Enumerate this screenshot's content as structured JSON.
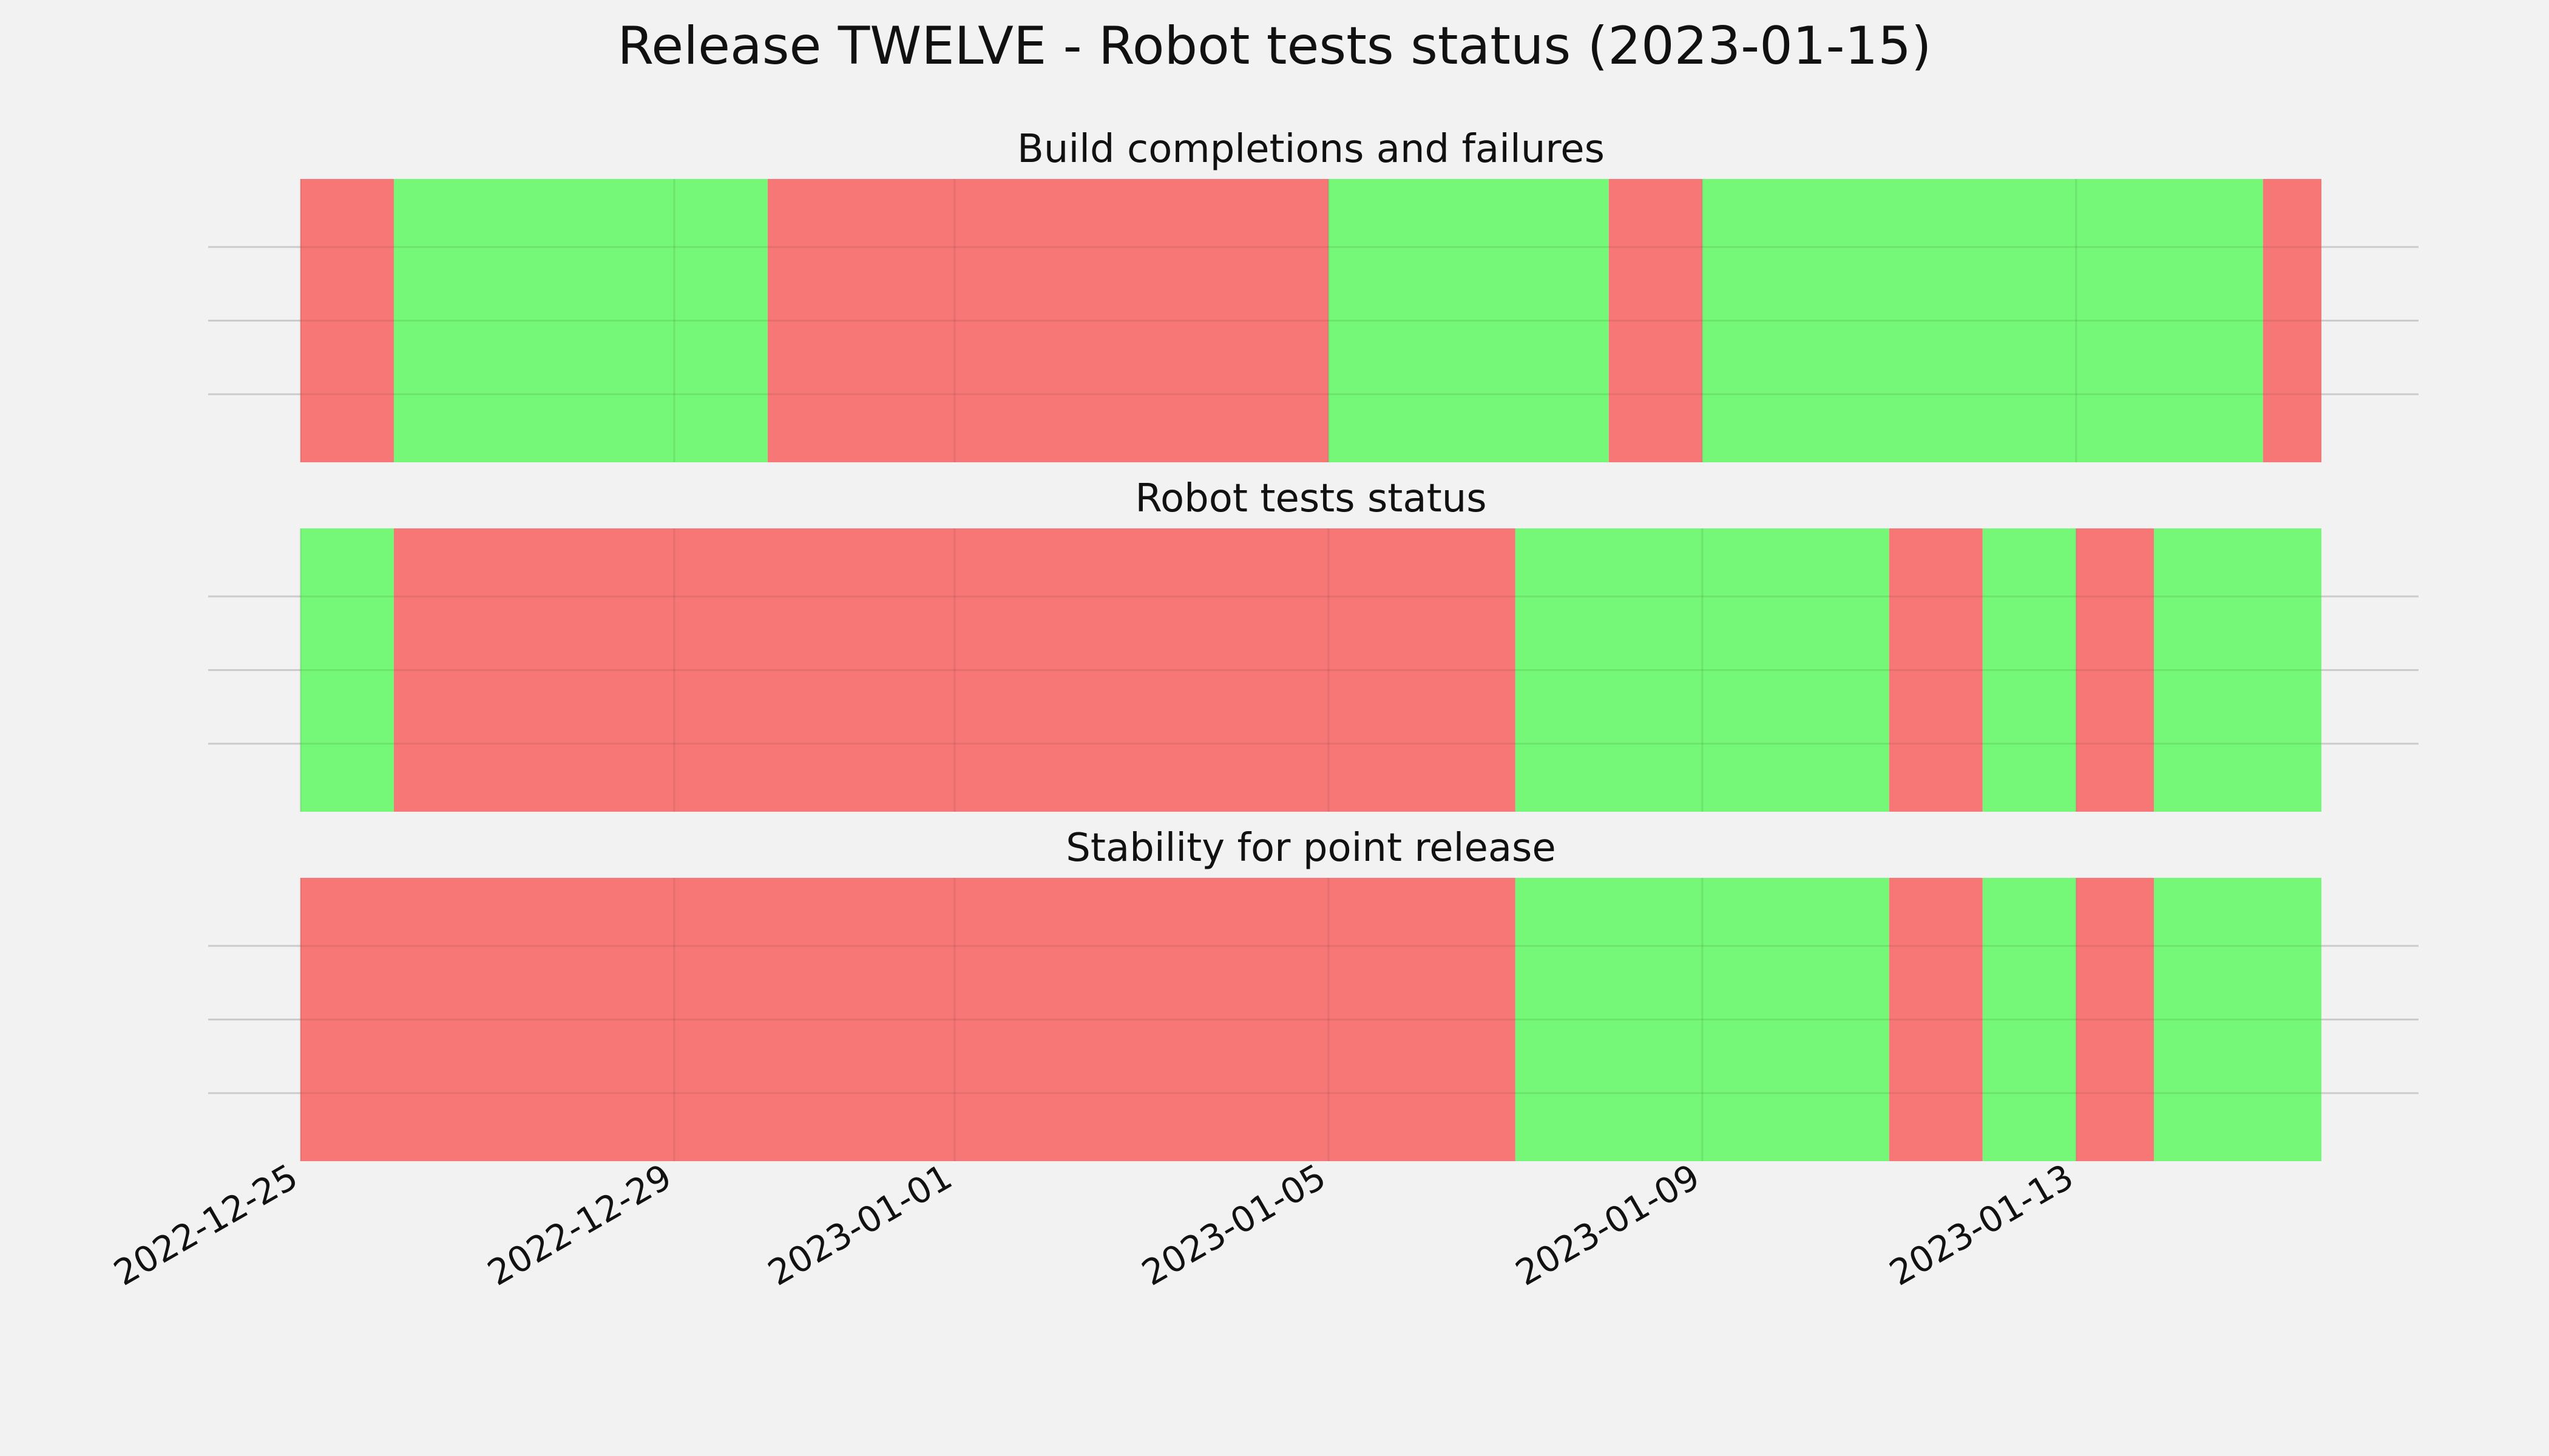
{
  "chart_data": {
    "type": "timeline",
    "title": "Release TWELVE - Robot tests status (2023-01-15)",
    "x_axis": {
      "type": "date",
      "range": [
        "2022-12-25",
        "2023-01-15 15:00"
      ],
      "ticks": [
        "2022-12-25",
        "2022-12-29",
        "2023-01-01",
        "2023-01-05",
        "2023-01-09",
        "2023-01-13"
      ],
      "tick_rotation_deg": 30
    },
    "colors": {
      "pass": "#75f777",
      "fail": "#f77777",
      "background": "#f2f2f2",
      "grid": "#cbcbcb"
    },
    "grid": true,
    "panels": [
      {
        "title": "Build completions and failures",
        "segments": [
          {
            "start": "2022-12-25",
            "end": "2022-12-26",
            "status": "fail"
          },
          {
            "start": "2022-12-26",
            "end": "2022-12-30",
            "status": "pass"
          },
          {
            "start": "2022-12-30",
            "end": "2023-01-05",
            "status": "fail"
          },
          {
            "start": "2023-01-05",
            "end": "2023-01-08",
            "status": "pass"
          },
          {
            "start": "2023-01-08",
            "end": "2023-01-09",
            "status": "fail"
          },
          {
            "start": "2023-01-09",
            "end": "2023-01-15",
            "status": "pass"
          },
          {
            "start": "2023-01-15",
            "end": "2023-01-15 15:00",
            "status": "fail"
          }
        ]
      },
      {
        "title": "Robot tests status",
        "segments": [
          {
            "start": "2022-12-25",
            "end": "2022-12-26",
            "status": "pass"
          },
          {
            "start": "2022-12-26",
            "end": "2023-01-07",
            "status": "fail"
          },
          {
            "start": "2023-01-07",
            "end": "2023-01-11",
            "status": "pass"
          },
          {
            "start": "2023-01-11",
            "end": "2023-01-12",
            "status": "fail"
          },
          {
            "start": "2023-01-12",
            "end": "2023-01-13",
            "status": "pass"
          },
          {
            "start": "2023-01-13",
            "end": "2023-01-13 20:00",
            "status": "fail"
          },
          {
            "start": "2023-01-13 20:00",
            "end": "2023-01-15 15:00",
            "status": "pass"
          }
        ]
      },
      {
        "title": "Stability for point release",
        "segments": [
          {
            "start": "2022-12-25",
            "end": "2023-01-07",
            "status": "fail"
          },
          {
            "start": "2023-01-07",
            "end": "2023-01-11",
            "status": "pass"
          },
          {
            "start": "2023-01-11",
            "end": "2023-01-12",
            "status": "fail"
          },
          {
            "start": "2023-01-12",
            "end": "2023-01-13",
            "status": "pass"
          },
          {
            "start": "2023-01-13",
            "end": "2023-01-13 20:00",
            "status": "fail"
          },
          {
            "start": "2023-01-13 20:00",
            "end": "2023-01-15 15:00",
            "status": "pass"
          }
        ]
      }
    ]
  }
}
